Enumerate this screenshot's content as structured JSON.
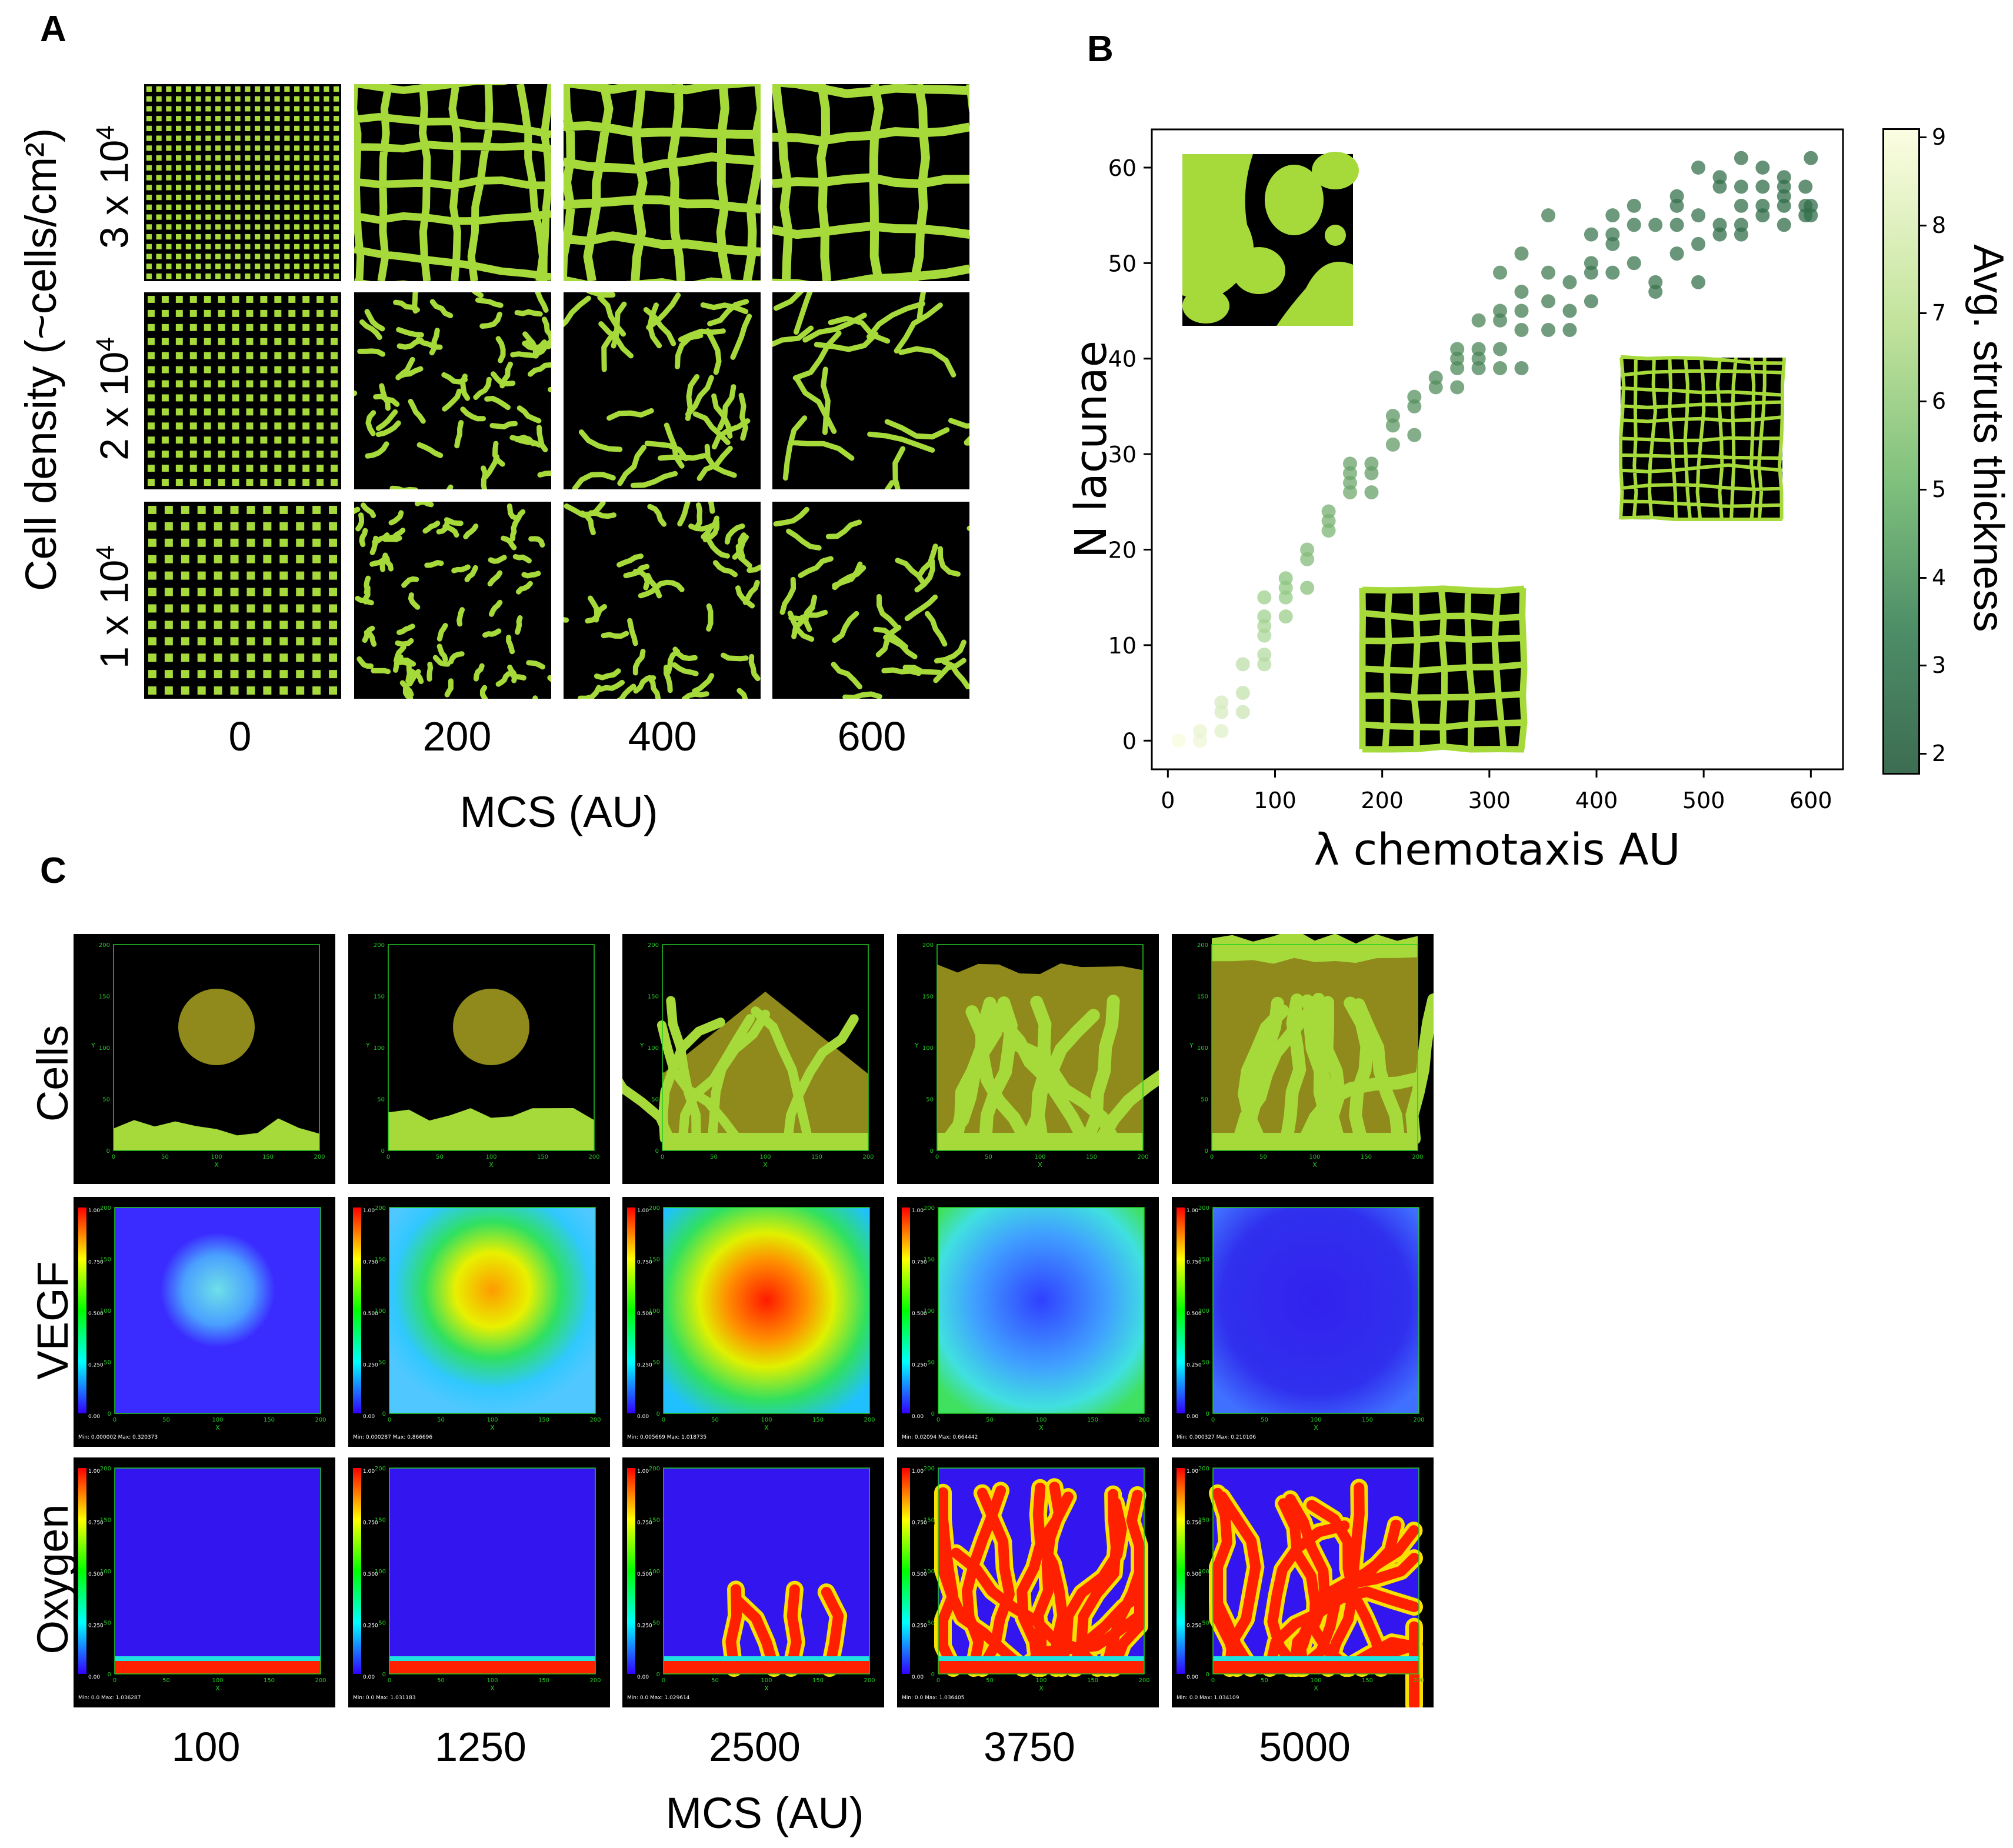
{
  "panel_a": {
    "label": "A",
    "ylabel": "Cell density (~cells/cm²)",
    "rows": [
      {
        "label": "3 x 10",
        "exp": "4",
        "pattern": "lattice"
      },
      {
        "label": "2 x 10",
        "exp": "4",
        "pattern": "grid"
      },
      {
        "label": "1 x 10",
        "exp": "4",
        "pattern": "grid"
      }
    ],
    "columns": [
      "0",
      "200",
      "400",
      "600"
    ],
    "xlabel": "MCS (AU)"
  },
  "panel_b": {
    "label": "B",
    "colorbar": {
      "label": "Avg. struts  thickness",
      "ticks": [
        "2",
        "3",
        "4",
        "5",
        "6",
        "7",
        "8",
        "9"
      ],
      "low_color": "#3f7556",
      "high_color": "#fbfde0"
    }
  },
  "panel_c": {
    "label": "C",
    "rows": [
      "Cells",
      "VEGF",
      "Oxygen"
    ],
    "columns": [
      "100",
      "1250",
      "2500",
      "3750",
      "5000"
    ],
    "xlabel": "MCS (AU)",
    "frame_ticks": [
      "0",
      "50",
      "100",
      "150",
      "200"
    ],
    "legend_ticks": [
      "1.00",
      "0.750",
      "0.500",
      "0.250",
      "0.00"
    ],
    "axis_x": "X",
    "axis_y": "Y",
    "minmax": [
      [
        "Min: 0.000002 Max: 0.320373",
        "Min: 0.000287 Max: 0.866696",
        "Min: 0.005669 Max: 1.018735",
        "Min: 0.02094 Max: 0.664442",
        "Min: 0.000327 Max: 0.210106"
      ],
      [
        "Min: 0.0 Max: 1.036287",
        "Min: 0.0 Max: 1.031183",
        "Min: 0.0 Max: 1.029614",
        "Min: 0.0 Max: 1.036405",
        "Min: 0.0 Max: 1.034109"
      ]
    ]
  },
  "chart_data": {
    "type": "scatter",
    "title": "",
    "xlabel": "λ chemotaxis AU",
    "ylabel": "N lacunae",
    "xlim": [
      -15,
      630
    ],
    "ylim": [
      -3,
      64
    ],
    "xticks": [
      0,
      100,
      200,
      300,
      400,
      500,
      600
    ],
    "yticks": [
      0,
      10,
      20,
      30,
      40,
      50,
      60
    ],
    "color_var": "Avg. struts thickness",
    "color_range": [
      1.8,
      9.1
    ],
    "points": [
      [
        10,
        0,
        9
      ],
      [
        30,
        0,
        8.7
      ],
      [
        30,
        1,
        8.5
      ],
      [
        50,
        1,
        8.2
      ],
      [
        50,
        3,
        7.9
      ],
      [
        50,
        4,
        7.8
      ],
      [
        70,
        3,
        7.5
      ],
      [
        70,
        5,
        7.2
      ],
      [
        70,
        8,
        7
      ],
      [
        90,
        8,
        6.8
      ],
      [
        90,
        9,
        6.7
      ],
      [
        90,
        11,
        6.5
      ],
      [
        90,
        12,
        6.3
      ],
      [
        90,
        13,
        6.1
      ],
      [
        90,
        15,
        6
      ],
      [
        110,
        13,
        5.8
      ],
      [
        110,
        15,
        5.7
      ],
      [
        110,
        16,
        5.5
      ],
      [
        110,
        17,
        5.3
      ],
      [
        130,
        16,
        5.2
      ],
      [
        130,
        19,
        5
      ],
      [
        130,
        20,
        4.9
      ],
      [
        150,
        22,
        4.7
      ],
      [
        150,
        23,
        4.6
      ],
      [
        150,
        24,
        4.5
      ],
      [
        170,
        26,
        4.3
      ],
      [
        170,
        27,
        4.2
      ],
      [
        170,
        28,
        4.1
      ],
      [
        170,
        29,
        4
      ],
      [
        190,
        26,
        3.9
      ],
      [
        190,
        28,
        3.8
      ],
      [
        190,
        29,
        3.8
      ],
      [
        210,
        31,
        3.7
      ],
      [
        210,
        33,
        3.6
      ],
      [
        210,
        34,
        3.5
      ],
      [
        230,
        32,
        3.4
      ],
      [
        230,
        35,
        3.3
      ],
      [
        230,
        36,
        3.3
      ],
      [
        250,
        37,
        3.2
      ],
      [
        250,
        38,
        3.1
      ],
      [
        270,
        37,
        3.1
      ],
      [
        270,
        39,
        3
      ],
      [
        270,
        40,
        3
      ],
      [
        270,
        41,
        3
      ],
      [
        290,
        39,
        2.9
      ],
      [
        290,
        40,
        2.9
      ],
      [
        290,
        41,
        2.8
      ],
      [
        290,
        44,
        2.8
      ],
      [
        310,
        39,
        2.8
      ],
      [
        310,
        41,
        2.7
      ],
      [
        310,
        44,
        2.7
      ],
      [
        310,
        45,
        2.7
      ],
      [
        310,
        49,
        2.7
      ],
      [
        330,
        39,
        2.6
      ],
      [
        330,
        43,
        2.6
      ],
      [
        330,
        45,
        2.6
      ],
      [
        330,
        47,
        2.6
      ],
      [
        330,
        51,
        2.6
      ],
      [
        355,
        43,
        2.5
      ],
      [
        355,
        46,
        2.5
      ],
      [
        355,
        49,
        2.5
      ],
      [
        355,
        55,
        2.5
      ],
      [
        375,
        43,
        2.4
      ],
      [
        375,
        45,
        2.4
      ],
      [
        375,
        48,
        2.4
      ],
      [
        395,
        46,
        2.3
      ],
      [
        395,
        49,
        2.3
      ],
      [
        395,
        50,
        2.3
      ],
      [
        395,
        53,
        2.3
      ],
      [
        415,
        49,
        2.3
      ],
      [
        415,
        52,
        2.3
      ],
      [
        415,
        53,
        2.3
      ],
      [
        415,
        55,
        2.3
      ],
      [
        435,
        50,
        2.2
      ],
      [
        435,
        54,
        2.2
      ],
      [
        435,
        56,
        2.2
      ],
      [
        455,
        47,
        2.2
      ],
      [
        455,
        48,
        2.2
      ],
      [
        455,
        54,
        2.2
      ],
      [
        475,
        51,
        2.1
      ],
      [
        475,
        54,
        2.1
      ],
      [
        475,
        56,
        2.1
      ],
      [
        475,
        57,
        2.1
      ],
      [
        495,
        48,
        2.1
      ],
      [
        495,
        52,
        2.1
      ],
      [
        495,
        55,
        2.1
      ],
      [
        495,
        60,
        2.1
      ],
      [
        515,
        53,
        2
      ],
      [
        515,
        54,
        2
      ],
      [
        515,
        58,
        2
      ],
      [
        515,
        59,
        2
      ],
      [
        535,
        53,
        2
      ],
      [
        535,
        54,
        2
      ],
      [
        535,
        56,
        2
      ],
      [
        535,
        58,
        2
      ],
      [
        535,
        61,
        2
      ],
      [
        555,
        55,
        1.9
      ],
      [
        555,
        56,
        1.9
      ],
      [
        555,
        58,
        1.9
      ],
      [
        555,
        60,
        1.9
      ],
      [
        575,
        54,
        1.9
      ],
      [
        575,
        56,
        1.9
      ],
      [
        575,
        57,
        1.9
      ],
      [
        575,
        58,
        1.9
      ],
      [
        575,
        59,
        1.9
      ],
      [
        595,
        55,
        1.9
      ],
      [
        595,
        56,
        1.9
      ],
      [
        595,
        58,
        1.9
      ],
      [
        600,
        55,
        1.9
      ],
      [
        600,
        56,
        1.9
      ],
      [
        600,
        61,
        1.9
      ]
    ]
  }
}
